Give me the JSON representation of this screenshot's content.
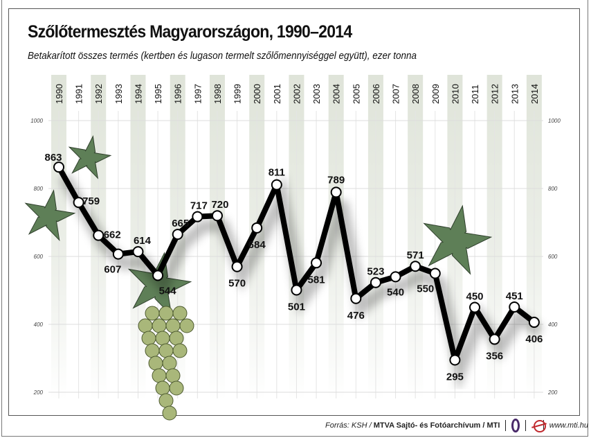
{
  "title": "Szőlőtermesztés Magyarországon, 1990–2014",
  "subtitle": "Betakarított összes termés (kertben és lugason termelt szőlőmennyiséggel együtt), ezer tonna",
  "chart_data": {
    "type": "line",
    "title": "Szőlőtermesztés Magyarországon, 1990–2014",
    "subtitle": "Betakarított összes termés (kertben és lugason termelt szőlőmennyiséggel együtt), ezer tonna",
    "x": [
      "1990",
      "1991",
      "1992",
      "1993",
      "1994",
      "1995",
      "1996",
      "1997",
      "1998",
      "1999",
      "2000",
      "2001",
      "2002",
      "2003",
      "2004",
      "2005",
      "2006",
      "2007",
      "2008",
      "2009",
      "2010",
      "2011",
      "2012",
      "2013",
      "2014"
    ],
    "values": [
      863,
      759,
      662,
      607,
      614,
      544,
      665,
      717,
      720,
      570,
      684,
      811,
      501,
      581,
      789,
      476,
      523,
      540,
      571,
      550,
      295,
      450,
      356,
      451,
      406
    ],
    "ylim": [
      200,
      1000
    ],
    "yticks": [
      "200",
      "400",
      "600",
      "800",
      "1000"
    ],
    "grid": true,
    "colors": {
      "line": "#000000",
      "marker_fill": "#ffffff",
      "stripe": "#dfe4d9",
      "leaf": "#5e7f57",
      "grape": "#a9b77a"
    }
  },
  "footer": {
    "source_prefix": "Forrás: KSH / ",
    "source_bold": "MTVA Sajtó- és Fotóarchívum / MTI",
    "logo1_text": "MTVA",
    "url": "www.mti.hu"
  }
}
